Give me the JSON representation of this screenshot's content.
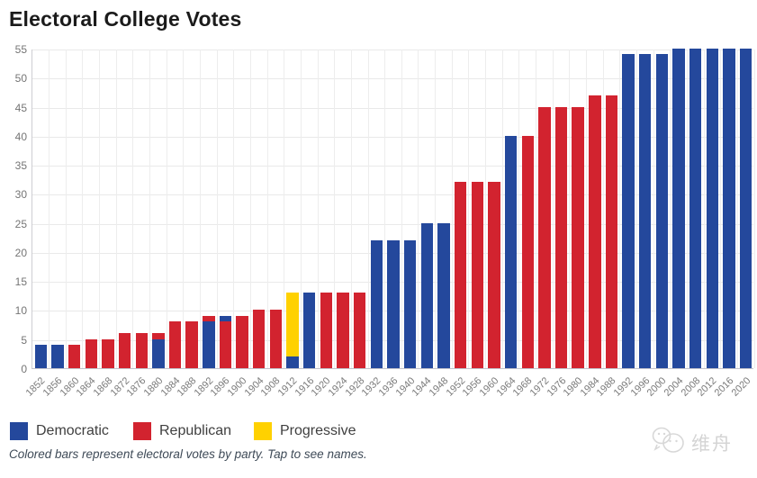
{
  "page": {
    "title": "Electoral College Votes",
    "caption": "Colored bars represent electoral votes by party. Tap to see names.",
    "watermark": "维舟"
  },
  "legend": {
    "items": [
      {
        "label": "Democratic",
        "party": "Democratic"
      },
      {
        "label": "Republican",
        "party": "Republican"
      },
      {
        "label": "Progressive",
        "party": "Progressive"
      }
    ]
  },
  "colors": {
    "democratic": "#24489c",
    "republican": "#d2232f",
    "progressive": "#ffd100",
    "gridline": "#e9e9e9",
    "axis": "#c2c2cc",
    "tick_text": "#757575",
    "title_text": "#1b1b1b",
    "caption_text": "#3e4a57",
    "watermark_text": "#d4d4d4"
  },
  "chart_data": {
    "type": "bar",
    "stacked": true,
    "title": "Electoral College Votes",
    "xlabel": "",
    "ylabel": "",
    "ylim": [
      0,
      55
    ],
    "ytick_step": 5,
    "grid": true,
    "legend_position": "bottom",
    "series_colors": {
      "Democratic": "#24489c",
      "Republican": "#d2232f",
      "Progressive": "#ffd100"
    },
    "bars": [
      {
        "year": "1852",
        "segments": [
          {
            "party": "Democratic",
            "value": 4
          }
        ]
      },
      {
        "year": "1856",
        "segments": [
          {
            "party": "Democratic",
            "value": 4
          }
        ]
      },
      {
        "year": "1860",
        "segments": [
          {
            "party": "Republican",
            "value": 4
          }
        ]
      },
      {
        "year": "1864",
        "segments": [
          {
            "party": "Republican",
            "value": 5
          }
        ]
      },
      {
        "year": "1868",
        "segments": [
          {
            "party": "Republican",
            "value": 5
          }
        ]
      },
      {
        "year": "1872",
        "segments": [
          {
            "party": "Republican",
            "value": 6
          }
        ]
      },
      {
        "year": "1876",
        "segments": [
          {
            "party": "Republican",
            "value": 6
          }
        ]
      },
      {
        "year": "1880",
        "segments": [
          {
            "party": "Democratic",
            "value": 5
          },
          {
            "party": "Republican",
            "value": 1
          }
        ]
      },
      {
        "year": "1884",
        "segments": [
          {
            "party": "Republican",
            "value": 8
          }
        ]
      },
      {
        "year": "1888",
        "segments": [
          {
            "party": "Republican",
            "value": 8
          }
        ]
      },
      {
        "year": "1892",
        "segments": [
          {
            "party": "Democratic",
            "value": 8
          },
          {
            "party": "Republican",
            "value": 1
          }
        ]
      },
      {
        "year": "1896",
        "segments": [
          {
            "party": "Republican",
            "value": 8
          },
          {
            "party": "Democratic",
            "value": 1
          }
        ]
      },
      {
        "year": "1900",
        "segments": [
          {
            "party": "Republican",
            "value": 9
          }
        ]
      },
      {
        "year": "1904",
        "segments": [
          {
            "party": "Republican",
            "value": 10
          }
        ]
      },
      {
        "year": "1908",
        "segments": [
          {
            "party": "Republican",
            "value": 10
          }
        ]
      },
      {
        "year": "1912",
        "segments": [
          {
            "party": "Democratic",
            "value": 2
          },
          {
            "party": "Progressive",
            "value": 11
          }
        ]
      },
      {
        "year": "1916",
        "segments": [
          {
            "party": "Democratic",
            "value": 13
          }
        ]
      },
      {
        "year": "1920",
        "segments": [
          {
            "party": "Republican",
            "value": 13
          }
        ]
      },
      {
        "year": "1924",
        "segments": [
          {
            "party": "Republican",
            "value": 13
          }
        ]
      },
      {
        "year": "1928",
        "segments": [
          {
            "party": "Republican",
            "value": 13
          }
        ]
      },
      {
        "year": "1932",
        "segments": [
          {
            "party": "Democratic",
            "value": 22
          }
        ]
      },
      {
        "year": "1936",
        "segments": [
          {
            "party": "Democratic",
            "value": 22
          }
        ]
      },
      {
        "year": "1940",
        "segments": [
          {
            "party": "Democratic",
            "value": 22
          }
        ]
      },
      {
        "year": "1944",
        "segments": [
          {
            "party": "Democratic",
            "value": 25
          }
        ]
      },
      {
        "year": "1948",
        "segments": [
          {
            "party": "Democratic",
            "value": 25
          }
        ]
      },
      {
        "year": "1952",
        "segments": [
          {
            "party": "Republican",
            "value": 32
          }
        ]
      },
      {
        "year": "1956",
        "segments": [
          {
            "party": "Republican",
            "value": 32
          }
        ]
      },
      {
        "year": "1960",
        "segments": [
          {
            "party": "Republican",
            "value": 32
          }
        ]
      },
      {
        "year": "1964",
        "segments": [
          {
            "party": "Democratic",
            "value": 40
          }
        ]
      },
      {
        "year": "1968",
        "segments": [
          {
            "party": "Republican",
            "value": 40
          }
        ]
      },
      {
        "year": "1972",
        "segments": [
          {
            "party": "Republican",
            "value": 45
          }
        ]
      },
      {
        "year": "1976",
        "segments": [
          {
            "party": "Republican",
            "value": 45
          }
        ]
      },
      {
        "year": "1980",
        "segments": [
          {
            "party": "Republican",
            "value": 45
          }
        ]
      },
      {
        "year": "1984",
        "segments": [
          {
            "party": "Republican",
            "value": 47
          }
        ]
      },
      {
        "year": "1988",
        "segments": [
          {
            "party": "Republican",
            "value": 47
          }
        ]
      },
      {
        "year": "1992",
        "segments": [
          {
            "party": "Democratic",
            "value": 54
          }
        ]
      },
      {
        "year": "1996",
        "segments": [
          {
            "party": "Democratic",
            "value": 54
          }
        ]
      },
      {
        "year": "2000",
        "segments": [
          {
            "party": "Democratic",
            "value": 54
          }
        ]
      },
      {
        "year": "2004",
        "segments": [
          {
            "party": "Democratic",
            "value": 55
          }
        ]
      },
      {
        "year": "2008",
        "segments": [
          {
            "party": "Democratic",
            "value": 55
          }
        ]
      },
      {
        "year": "2012",
        "segments": [
          {
            "party": "Democratic",
            "value": 55
          }
        ]
      },
      {
        "year": "2016",
        "segments": [
          {
            "party": "Democratic",
            "value": 55
          }
        ]
      },
      {
        "year": "2020",
        "segments": [
          {
            "party": "Democratic",
            "value": 55
          }
        ]
      }
    ]
  }
}
